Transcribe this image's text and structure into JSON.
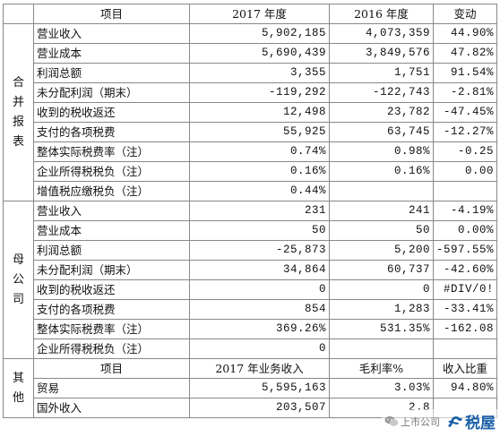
{
  "header": {
    "item": "项目",
    "y2017": "2017 年度",
    "y2016": "2016 年度",
    "change": "变动"
  },
  "consolidated": {
    "label_chars": [
      "合",
      "并",
      "报",
      "表"
    ],
    "rows": [
      {
        "name": "营业收入",
        "v2017": "5,902,185",
        "v2016": "4,073,359",
        "change": "44.90%"
      },
      {
        "name": "营业成本",
        "v2017": "5,690,439",
        "v2016": "3,849,576",
        "change": "47.82%"
      },
      {
        "name": "利润总额",
        "v2017": "3,355",
        "v2016": "1,751",
        "change": "91.54%"
      },
      {
        "name": "未分配利润（期末）",
        "v2017": "-119,292",
        "v2016": "-122,743",
        "change": "-2.81%"
      },
      {
        "name": "收到的税收返还",
        "v2017": "12,498",
        "v2016": "23,782",
        "change": "-47.45%"
      },
      {
        "name": "支付的各项税费",
        "v2017": "55,925",
        "v2016": "63,745",
        "change": "-12.27%"
      },
      {
        "name": "整体实际税费率（注）",
        "v2017": "0.74%",
        "v2016": "0.98%",
        "change": "-0.25"
      },
      {
        "name": "企业所得税税负（注）",
        "v2017": "0.16%",
        "v2016": "0.16%",
        "change": "0.00"
      },
      {
        "name": "增值税应缴税负（注）",
        "v2017": "0.44%",
        "v2016": "",
        "change": ""
      }
    ]
  },
  "parent": {
    "label_chars": [
      "母",
      "公",
      "司"
    ],
    "rows": [
      {
        "name": "营业收入",
        "v2017": "231",
        "v2016": "241",
        "change": "-4.19%"
      },
      {
        "name": "营业成本",
        "v2017": "50",
        "v2016": "50",
        "change": "0.00%"
      },
      {
        "name": "利润总额",
        "v2017": "-25,873",
        "v2016": "5,200",
        "change": "-597.55%"
      },
      {
        "name": "未分配利润（期末）",
        "v2017": "34,864",
        "v2016": "60,737",
        "change": "-42.60%"
      },
      {
        "name": "收到的税收返还",
        "v2017": "0",
        "v2016": "0",
        "change": "#DIV/0!"
      },
      {
        "name": "支付的各项税费",
        "v2017": "854",
        "v2016": "1,283",
        "change": "-33.41%"
      },
      {
        "name": "整体实际税费率（注）",
        "v2017": "369.26%",
        "v2016": "531.35%",
        "change": "-162.08"
      },
      {
        "name": "企业所得税税负（注）",
        "v2017": "0",
        "v2016": "",
        "change": ""
      }
    ]
  },
  "other": {
    "label_chars": [
      "其",
      "他"
    ],
    "header": {
      "item": "项目",
      "col1": "2017 年业务收入",
      "col2": "毛利率%",
      "col3": "收入比重"
    },
    "rows": [
      {
        "name": "贸易",
        "c1": "5,595,163",
        "c2": "3.03%",
        "c3": "94.80%"
      },
      {
        "name": "国外收入",
        "c1": "203,507",
        "c2": "2.8",
        "c3": ""
      }
    ]
  },
  "watermark": {
    "source": "上市公司",
    "brand": "税屋",
    "icons": [
      "wechat-icon",
      "tax-house-logo"
    ]
  },
  "colors": {
    "border": "#888888",
    "brand": "#1a5fa8"
  }
}
